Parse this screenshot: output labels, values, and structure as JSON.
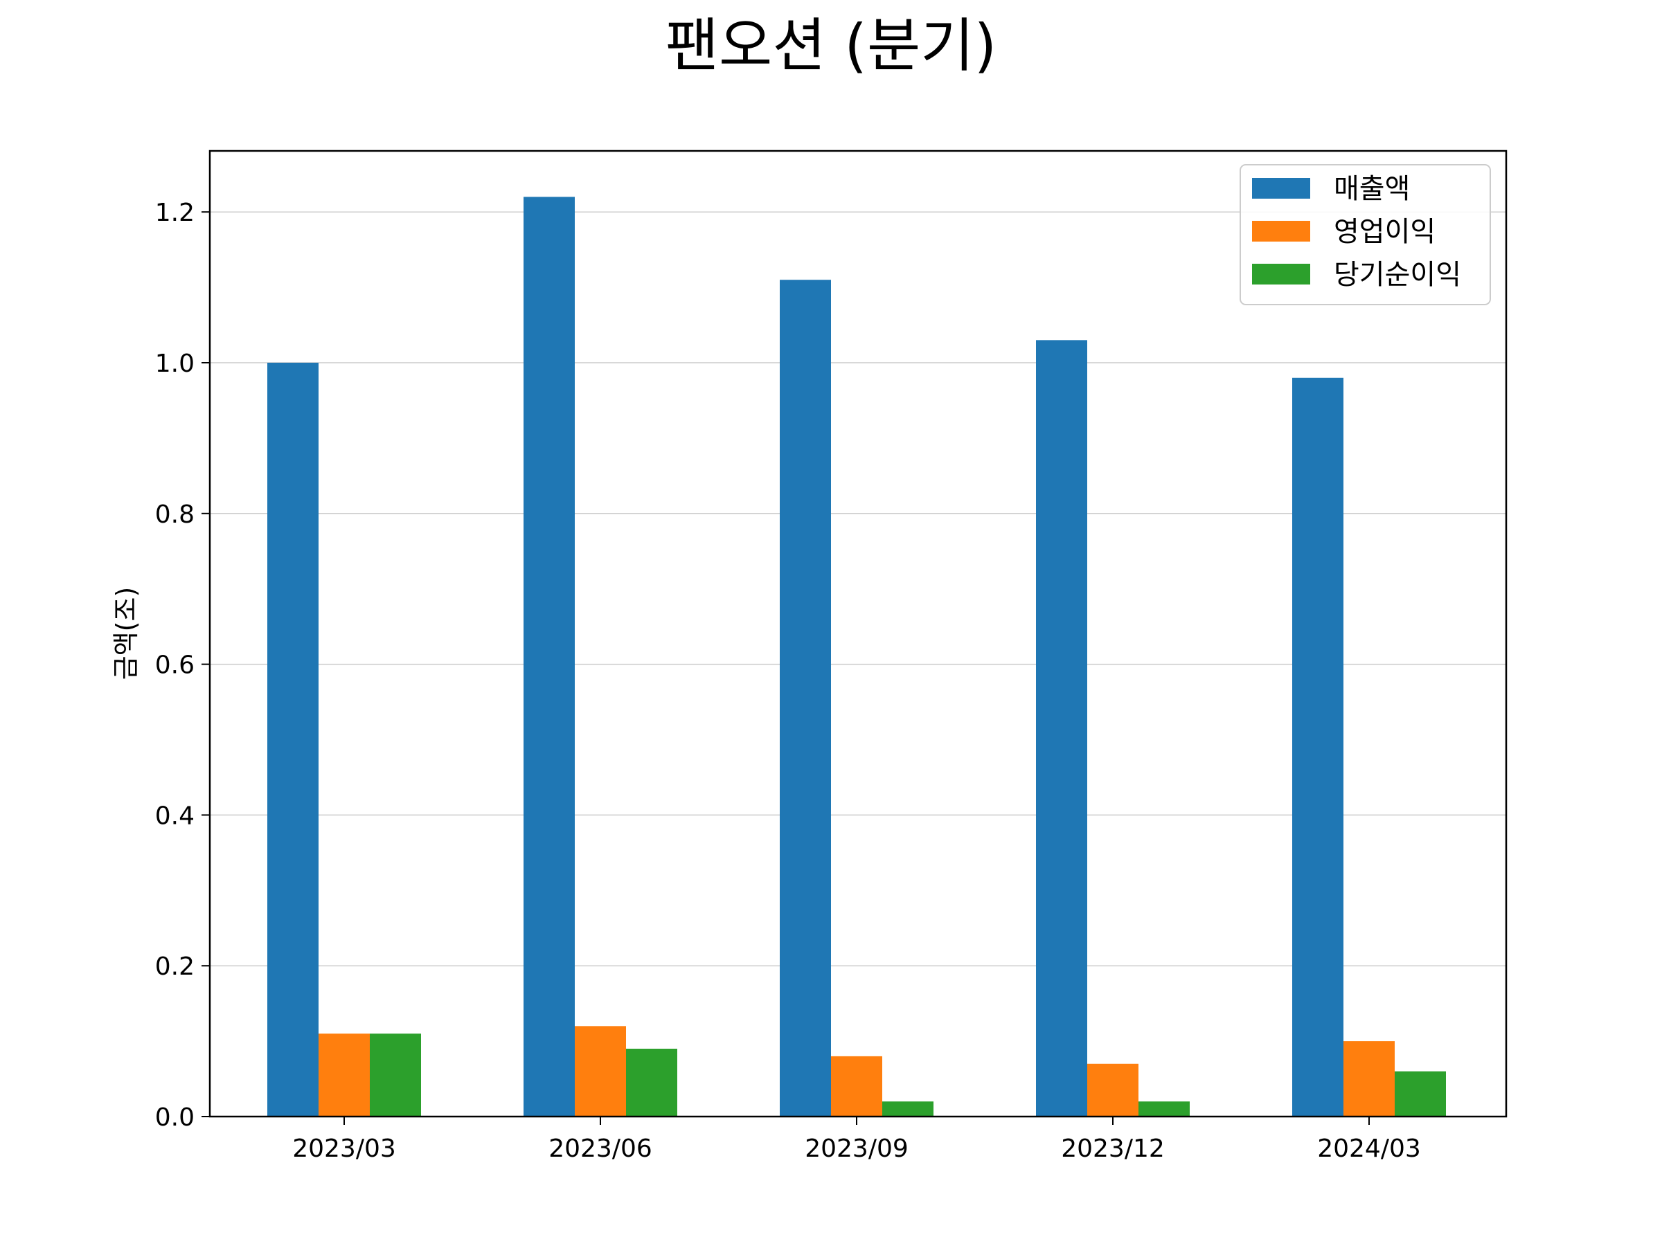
{
  "chart_data": {
    "type": "bar",
    "title": "팬오션 (분기)",
    "xlabel": "",
    "ylabel": "금액(조)",
    "categories": [
      "2023/03",
      "2023/06",
      "2023/09",
      "2023/12",
      "2024/03"
    ],
    "series": [
      {
        "name": "매출액",
        "color": "#1f77b4",
        "values": [
          1.0,
          1.22,
          1.11,
          1.03,
          0.98
        ]
      },
      {
        "name": "영업이익",
        "color": "#ff7f0e",
        "values": [
          0.11,
          0.12,
          0.08,
          0.07,
          0.1
        ]
      },
      {
        "name": "당기순이익",
        "color": "#2ca02c",
        "values": [
          0.11,
          0.09,
          0.02,
          0.02,
          0.06
        ]
      }
    ],
    "ylim": [
      0,
      1.281
    ],
    "yticks": [
      "0.0",
      "0.2",
      "0.4",
      "0.6",
      "0.8",
      "1.0",
      "1.2"
    ],
    "grid": "horizontal",
    "legend_position": "top-right"
  }
}
